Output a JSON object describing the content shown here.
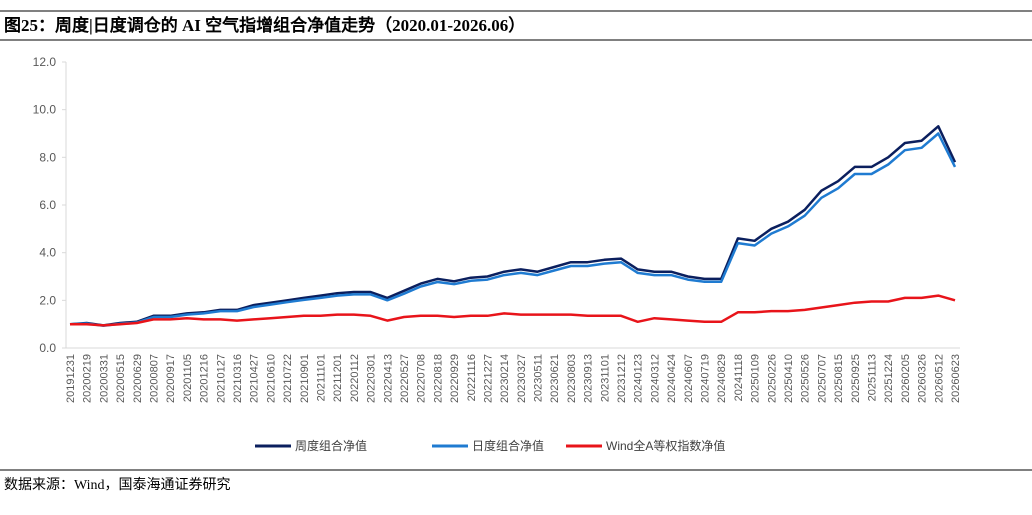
{
  "chart_data": {
    "type": "line",
    "title": "图25：周度|日度调仓的 AI 空气指增组合净值走势（2020.01-2026.06）",
    "source": "数据来源：Wind，国泰海通证券研究",
    "categories": [
      "20191231",
      "20200219",
      "20200331",
      "20200515",
      "20200629",
      "20200807",
      "20200917",
      "20201105",
      "20201216",
      "20210127",
      "20210316",
      "20210427",
      "20210610",
      "20210722",
      "20210901",
      "20211101",
      "20211201",
      "20220112",
      "20220301",
      "20220413",
      "20220527",
      "20220708",
      "20220818",
      "20220929",
      "20221116",
      "20221227",
      "20230214",
      "20230327",
      "20230511",
      "20230621",
      "20230803",
      "20230913",
      "20231101",
      "20231212",
      "20240123",
      "20240312",
      "20240424",
      "20240607",
      "20240719",
      "20240829",
      "20241118",
      "20250109",
      "20250226",
      "20250410",
      "20250526",
      "20250707",
      "20250815",
      "20250925",
      "20251113",
      "20251224",
      "20260205",
      "20260326",
      "20260512",
      "20260623"
    ],
    "series": [
      {
        "name": "周度组合净值",
        "color": "#0b1f5e",
        "values": [
          1.0,
          1.05,
          0.95,
          1.05,
          1.1,
          1.35,
          1.35,
          1.45,
          1.5,
          1.6,
          1.6,
          1.8,
          1.9,
          2.0,
          2.1,
          2.2,
          2.3,
          2.35,
          2.35,
          2.1,
          2.4,
          2.7,
          2.9,
          2.8,
          2.95,
          3.0,
          3.2,
          3.3,
          3.2,
          3.4,
          3.6,
          3.6,
          3.7,
          3.75,
          3.3,
          3.2,
          3.2,
          3.0,
          2.9,
          2.9,
          4.6,
          4.5,
          5.0,
          5.3,
          5.8,
          6.6,
          7.0,
          7.6,
          7.6,
          8.0,
          8.6,
          8.7,
          9.3,
          7.8
        ]
      },
      {
        "name": "日度组合净值",
        "color": "#1f7bd1",
        "values": [
          1.0,
          1.03,
          0.93,
          1.02,
          1.07,
          1.3,
          1.3,
          1.4,
          1.45,
          1.55,
          1.55,
          1.72,
          1.82,
          1.92,
          2.02,
          2.1,
          2.2,
          2.25,
          2.25,
          2.0,
          2.28,
          2.58,
          2.77,
          2.68,
          2.82,
          2.87,
          3.06,
          3.15,
          3.06,
          3.25,
          3.44,
          3.44,
          3.54,
          3.6,
          3.15,
          3.06,
          3.06,
          2.87,
          2.78,
          2.78,
          4.4,
          4.3,
          4.8,
          5.1,
          5.55,
          6.3,
          6.7,
          7.3,
          7.3,
          7.7,
          8.3,
          8.4,
          9.0,
          7.6
        ]
      },
      {
        "name": "Wind全A等权指数净值",
        "color": "#e8141a",
        "values": [
          1.0,
          1.0,
          0.95,
          1.0,
          1.05,
          1.2,
          1.2,
          1.25,
          1.2,
          1.2,
          1.15,
          1.2,
          1.25,
          1.3,
          1.35,
          1.35,
          1.4,
          1.4,
          1.35,
          1.15,
          1.3,
          1.35,
          1.35,
          1.3,
          1.35,
          1.35,
          1.45,
          1.4,
          1.4,
          1.4,
          1.4,
          1.35,
          1.35,
          1.35,
          1.1,
          1.25,
          1.2,
          1.15,
          1.1,
          1.1,
          1.5,
          1.5,
          1.55,
          1.55,
          1.6,
          1.7,
          1.8,
          1.9,
          1.95,
          1.95,
          2.1,
          2.1,
          2.2,
          2.0
        ]
      }
    ],
    "ylim": [
      0,
      12
    ],
    "yticks": [
      {
        "value": 0,
        "label": "0.0"
      },
      {
        "value": 2,
        "label": "2.0"
      },
      {
        "value": 4,
        "label": "4.0"
      },
      {
        "value": 6,
        "label": "6.0"
      },
      {
        "value": 8,
        "label": "8.0"
      },
      {
        "value": 10,
        "label": "10.0"
      },
      {
        "value": 12,
        "label": "12.0"
      }
    ],
    "grid": false,
    "legend": "bottom"
  }
}
